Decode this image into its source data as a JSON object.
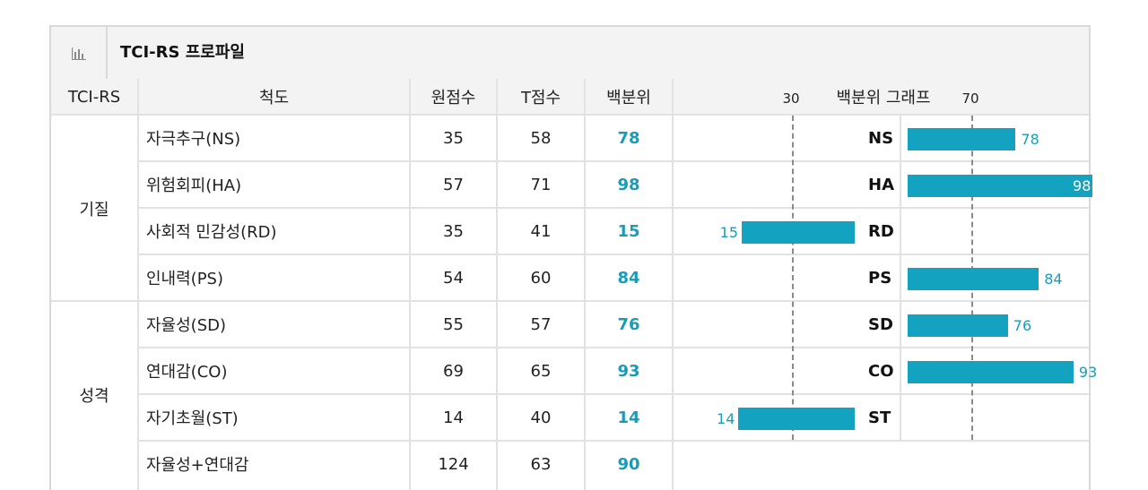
{
  "title": "TCI-RS 프로파일",
  "icon": "bar-chart-icon",
  "headers": {
    "group": "TCI-RS",
    "scale": "척도",
    "raw": "원점수",
    "t": "T점수",
    "pct": "백분위",
    "graph": "백분위 그래프",
    "tick30": "30",
    "tick70": "70"
  },
  "groups": [
    {
      "label": "기질"
    },
    {
      "label": "성격"
    }
  ],
  "rows": [
    {
      "scale": "자극추구(NS)",
      "raw": "35",
      "t": "58",
      "pct": "78",
      "code": "NS",
      "bar_value": "78"
    },
    {
      "scale": "위험회피(HA)",
      "raw": "57",
      "t": "71",
      "pct": "98",
      "code": "HA",
      "bar_value": "98"
    },
    {
      "scale": "사회적 민감성(RD)",
      "raw": "35",
      "t": "41",
      "pct": "15",
      "code": "RD",
      "bar_value": "15"
    },
    {
      "scale": "인내력(PS)",
      "raw": "54",
      "t": "60",
      "pct": "84",
      "code": "PS",
      "bar_value": "84"
    },
    {
      "scale": "자율성(SD)",
      "raw": "55",
      "t": "57",
      "pct": "76",
      "code": "SD",
      "bar_value": "76"
    },
    {
      "scale": "연대감(CO)",
      "raw": "69",
      "t": "65",
      "pct": "93",
      "code": "CO",
      "bar_value": "93"
    },
    {
      "scale": "자기초월(ST)",
      "raw": "14",
      "t": "40",
      "pct": "14",
      "code": "ST",
      "bar_value": "14"
    },
    {
      "scale": "자율성+연대감",
      "raw": "124",
      "t": "63",
      "pct": "90",
      "code": "",
      "bar_value": ""
    }
  ],
  "colors": {
    "bar": "#13a3c0",
    "percentile_text": "#1a9cb8"
  }
}
